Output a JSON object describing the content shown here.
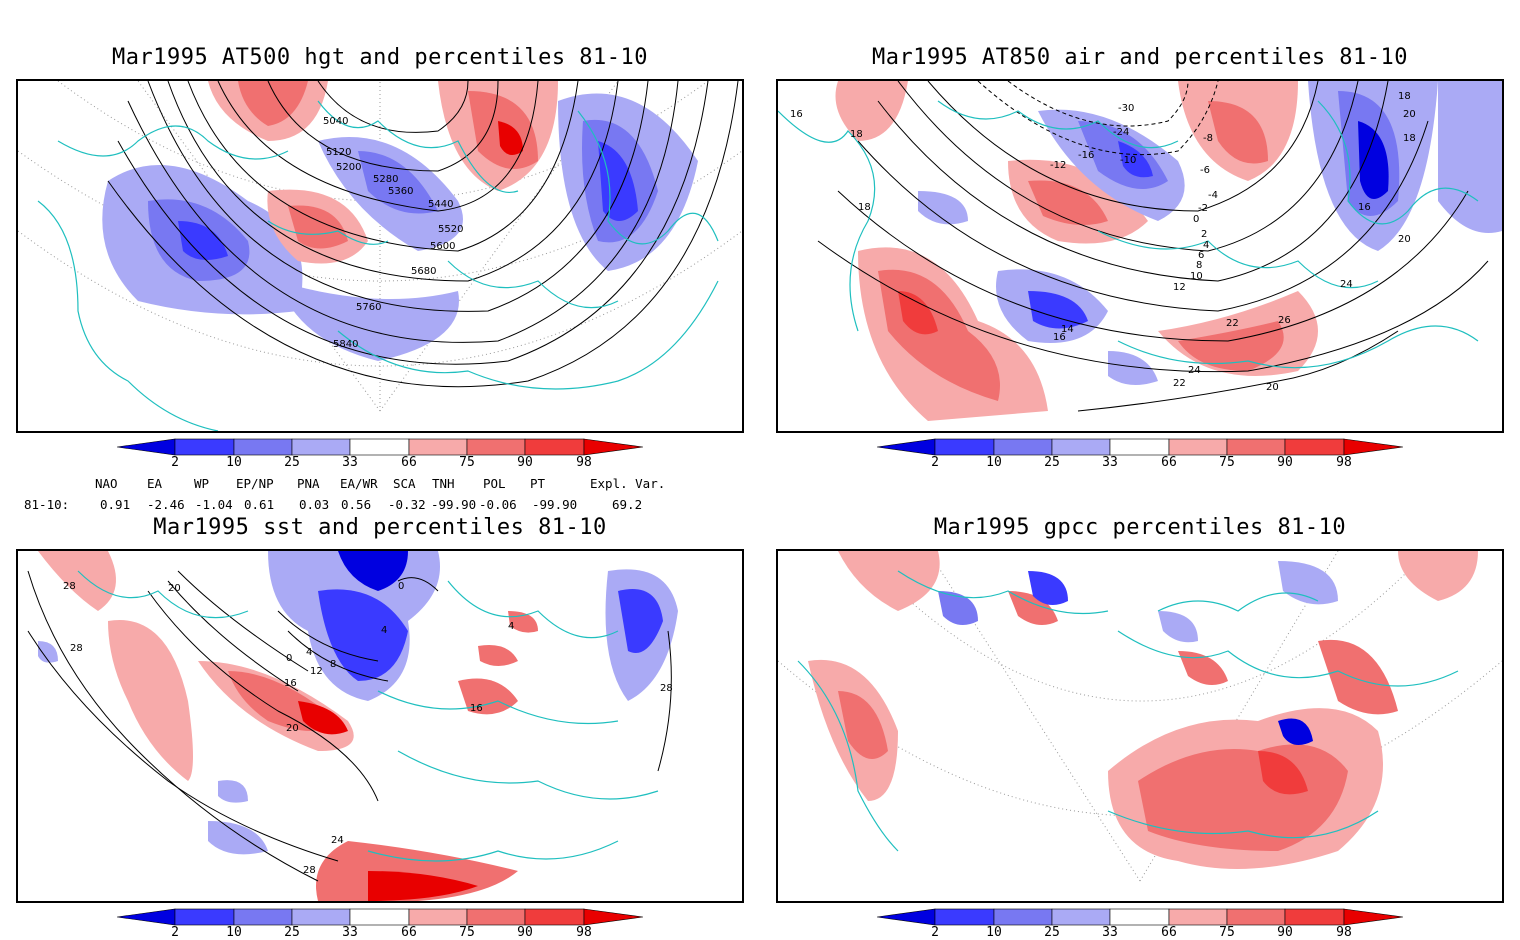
{
  "panels": [
    {
      "title": "Mar1995 AT500 hgt and percentiles 81-10",
      "contour_labels": [
        "5040",
        "5120",
        "5200",
        "5280",
        "5360",
        "5440",
        "5520",
        "5600",
        "5680",
        "5760",
        "5840"
      ]
    },
    {
      "title": "Mar1995 AT850 air and percentiles 81-10",
      "contour_labels": [
        "16",
        "18",
        "18",
        "-30",
        "-24",
        "-16",
        "-12",
        "-10",
        "-8",
        "-6",
        "-4",
        "-2",
        "0",
        "2",
        "4",
        "6",
        "8",
        "10",
        "12",
        "14",
        "16",
        "20",
        "22",
        "24",
        "26",
        "22",
        "20",
        "24",
        "20",
        "18",
        "16",
        "18"
      ]
    },
    {
      "title": "Mar1995 sst and percentiles 81-10",
      "contour_labels": [
        "28",
        "28",
        "20",
        "0",
        "4",
        "8",
        "12",
        "16",
        "20",
        "0",
        "4",
        "4",
        "16",
        "24",
        "28",
        "28"
      ]
    },
    {
      "title": "Mar1995 gpcc percentiles 81-10",
      "contour_labels": []
    }
  ],
  "colorbar": {
    "labels": [
      "2",
      "10",
      "25",
      "33",
      "66",
      "75",
      "90",
      "98"
    ],
    "colors": [
      "#0000e0",
      "#3a3aff",
      "#7878f2",
      "#aaaaf5",
      "#ffffff",
      "#f7aaaa",
      "#f07070",
      "#f03c3c",
      "#e80000"
    ]
  },
  "indices": {
    "header": [
      "NAO",
      "EA",
      "WP",
      "EP/NP",
      "PNA",
      "EA/WR",
      "SCA",
      "TNH",
      "POL",
      "PT",
      "Expl. Var."
    ],
    "row_label": "81-10:",
    "values": [
      "0.91",
      "-2.46",
      "-1.04",
      "0.61",
      "0.03",
      "0.56",
      "-0.32",
      "-99.90",
      "-0.06",
      "-99.90",
      "69.2"
    ]
  }
}
